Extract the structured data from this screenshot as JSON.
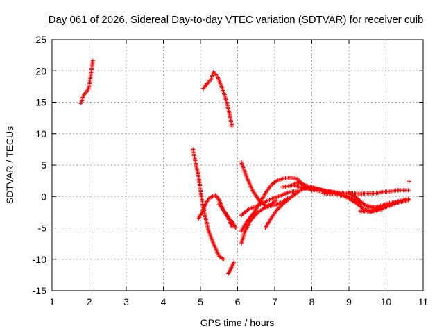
{
  "chart_data": {
    "type": "scatter",
    "title": "Day 061 of 2026, Sidereal Day-to-day VTEC variation (SDTVAR) for receiver cuib",
    "xlabel": "GPS time / hours",
    "ylabel": "SDTVAR / TECUs",
    "xlim": [
      1,
      11
    ],
    "ylim": [
      -15,
      25
    ],
    "xticks": [
      "1",
      "2",
      "3",
      "4",
      "5",
      "6",
      "7",
      "8",
      "9",
      "10",
      "11"
    ],
    "yticks": [
      "-15",
      "-10",
      "-5",
      "0",
      "5",
      "10",
      "15",
      "20",
      "25"
    ],
    "grid": true,
    "marker": "plus",
    "color": "#ff0000",
    "segments": [
      [
        [
          1.78,
          14.8
        ],
        [
          1.83,
          15.8
        ],
        [
          1.88,
          16.4
        ],
        [
          1.95,
          16.8
        ],
        [
          2.0,
          17.5
        ],
        [
          2.05,
          19.5
        ],
        [
          2.1,
          21.6
        ]
      ],
      [
        [
          5.08,
          17.2
        ],
        [
          5.18,
          18.0
        ],
        [
          5.28,
          18.6
        ],
        [
          5.35,
          19.8
        ],
        [
          5.45,
          19.2
        ],
        [
          5.55,
          17.8
        ],
        [
          5.65,
          16.2
        ],
        [
          5.75,
          14.0
        ],
        [
          5.85,
          11.2
        ]
      ],
      [
        [
          4.8,
          7.5
        ],
        [
          4.88,
          5.0
        ],
        [
          4.95,
          3.2
        ],
        [
          5.0,
          1.0
        ],
        [
          5.05,
          -1.0
        ],
        [
          5.12,
          -3.0
        ],
        [
          5.22,
          -5.5
        ],
        [
          5.35,
          -7.5
        ],
        [
          5.5,
          -9.5
        ],
        [
          5.62,
          -10.0
        ]
      ],
      [
        [
          4.95,
          -3.5
        ],
        [
          5.05,
          -2.5
        ],
        [
          5.15,
          -1.0
        ],
        [
          5.25,
          -0.2
        ],
        [
          5.4,
          0.2
        ],
        [
          5.5,
          -0.5
        ],
        [
          5.6,
          -2.0
        ],
        [
          5.72,
          -3.0
        ],
        [
          5.85,
          -4.8
        ]
      ],
      [
        [
          5.5,
          -1.2
        ],
        [
          5.6,
          -2.0
        ],
        [
          5.7,
          -3.0
        ],
        [
          5.85,
          -4.0
        ],
        [
          5.95,
          -5.0
        ]
      ],
      [
        [
          5.75,
          -12.3
        ],
        [
          5.82,
          -11.5
        ],
        [
          5.9,
          -10.5
        ]
      ],
      [
        [
          6.1,
          5.5
        ],
        [
          6.25,
          3.0
        ],
        [
          6.4,
          1.0
        ],
        [
          6.6,
          -0.8
        ],
        [
          6.8,
          -1.6
        ],
        [
          7.0,
          -1.4
        ],
        [
          7.2,
          -0.9
        ],
        [
          7.35,
          -0.3
        ]
      ],
      [
        [
          6.1,
          -7.5
        ],
        [
          6.2,
          -5.5
        ],
        [
          6.35,
          -3.8
        ],
        [
          6.55,
          -2.5
        ],
        [
          6.7,
          -1.9
        ],
        [
          6.9,
          -1.2
        ],
        [
          7.05,
          -0.6
        ]
      ],
      [
        [
          6.1,
          -3.0
        ],
        [
          6.3,
          -2.0
        ],
        [
          6.5,
          -1.6
        ],
        [
          6.7,
          -1.0
        ],
        [
          6.9,
          -0.4
        ],
        [
          7.1,
          0.0
        ],
        [
          7.35,
          0.6
        ],
        [
          7.6,
          0.9
        ]
      ],
      [
        [
          6.1,
          -5.5
        ],
        [
          6.25,
          -4.0
        ],
        [
          6.45,
          -2.5
        ],
        [
          6.6,
          -1.0
        ],
        [
          6.75,
          0.5
        ],
        [
          6.9,
          1.8
        ],
        [
          7.05,
          2.5
        ],
        [
          7.25,
          2.9
        ],
        [
          7.45,
          3.0
        ],
        [
          7.6,
          2.8
        ],
        [
          7.75,
          2.0
        ],
        [
          7.9,
          1.4
        ],
        [
          8.0,
          1.0
        ]
      ],
      [
        [
          6.75,
          -5.0
        ],
        [
          6.9,
          -3.5
        ],
        [
          7.05,
          -2.2
        ],
        [
          7.2,
          -1.3
        ],
        [
          7.4,
          -0.3
        ],
        [
          7.6,
          0.6
        ],
        [
          7.75,
          1.2
        ],
        [
          7.9,
          1.4
        ],
        [
          8.1,
          1.3
        ],
        [
          8.3,
          1.0
        ],
        [
          8.5,
          0.8
        ],
        [
          8.7,
          0.6
        ],
        [
          8.9,
          0.5
        ]
      ],
      [
        [
          7.5,
          2.0
        ],
        [
          7.65,
          2.2
        ],
        [
          7.8,
          1.8
        ],
        [
          8.0,
          1.5
        ],
        [
          8.2,
          1.1
        ],
        [
          8.45,
          0.8
        ],
        [
          8.7,
          0.6
        ],
        [
          8.9,
          0.5
        ],
        [
          9.1,
          0.5
        ],
        [
          9.3,
          0.4
        ],
        [
          9.5,
          0.5
        ],
        [
          9.7,
          0.5
        ],
        [
          9.9,
          0.7
        ],
        [
          10.1,
          0.8
        ],
        [
          10.3,
          1.0
        ],
        [
          10.6,
          1.0
        ]
      ],
      [
        [
          7.2,
          1.5
        ],
        [
          7.5,
          1.8
        ],
        [
          7.8,
          1.3
        ],
        [
          8.2,
          0.9
        ],
        [
          8.6,
          0.6
        ],
        [
          8.9,
          0.2
        ],
        [
          9.1,
          -0.4
        ],
        [
          9.3,
          -1.0
        ],
        [
          9.5,
          -1.5
        ],
        [
          9.7,
          -1.8
        ],
        [
          9.9,
          -1.8
        ],
        [
          10.1,
          -1.5
        ],
        [
          10.3,
          -1.0
        ],
        [
          10.6,
          -0.5
        ]
      ],
      [
        [
          8.3,
          0.5
        ],
        [
          8.6,
          0.4
        ],
        [
          8.85,
          0.1
        ],
        [
          9.05,
          -0.5
        ],
        [
          9.25,
          -1.3
        ],
        [
          9.4,
          -2.0
        ],
        [
          9.6,
          -2.4
        ],
        [
          9.8,
          -2.0
        ],
        [
          10.0,
          -1.5
        ],
        [
          10.25,
          -1.0
        ],
        [
          10.45,
          -0.8
        ],
        [
          10.6,
          -0.6
        ]
      ],
      [
        [
          9.0,
          0.6
        ],
        [
          9.2,
          -0.2
        ],
        [
          9.35,
          -1.0
        ],
        [
          9.5,
          -1.6
        ],
        [
          9.65,
          -1.8
        ],
        [
          9.85,
          -1.5
        ],
        [
          10.05,
          -1.1
        ],
        [
          10.3,
          -0.8
        ],
        [
          10.6,
          -0.4
        ]
      ],
      [
        [
          9.3,
          -2.3
        ],
        [
          9.5,
          -2.4
        ],
        [
          9.7,
          -2.3
        ],
        [
          9.9,
          -2.0
        ]
      ],
      [
        [
          10.62,
          2.4
        ]
      ]
    ]
  }
}
